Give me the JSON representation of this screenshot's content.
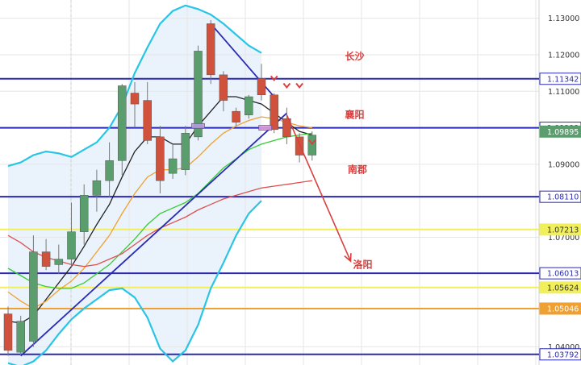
{
  "chart_data": {
    "type": "candlestick",
    "y_axis_ticks": [
      "1.13000",
      "1.12000",
      "1.11000",
      "1.10000",
      "1.09000",
      "1.07000",
      "1.04000"
    ],
    "ylim": [
      1.035,
      1.135
    ],
    "grid": true,
    "bollinger": {
      "upper": [
        1.0895,
        1.0905,
        1.0925,
        1.0935,
        1.093,
        1.092,
        1.094,
        1.096,
        1.1,
        1.106,
        1.115,
        1.122,
        1.1285,
        1.132,
        1.1335,
        1.1325,
        1.131,
        1.1285,
        1.1255,
        1.1225,
        1.1205
      ],
      "lower": [
        1.0355,
        1.0345,
        1.036,
        1.039,
        1.0435,
        1.0475,
        1.0505,
        1.053,
        1.0555,
        1.056,
        1.0535,
        1.048,
        1.0395,
        1.036,
        1.039,
        1.046,
        1.056,
        1.063,
        1.0705,
        1.0765,
        1.08
      ]
    },
    "candles": [
      {
        "o": 1.049,
        "h": 1.051,
        "l": 1.0375,
        "c": 1.039
      },
      {
        "o": 1.0385,
        "h": 1.0485,
        "l": 1.0375,
        "c": 1.047
      },
      {
        "o": 1.0415,
        "h": 1.0705,
        "l": 1.04,
        "c": 1.066
      },
      {
        "o": 1.066,
        "h": 1.0695,
        "l": 1.061,
        "c": 1.062
      },
      {
        "o": 1.0625,
        "h": 1.068,
        "l": 1.06,
        "c": 1.064
      },
      {
        "o": 1.064,
        "h": 1.0795,
        "l": 1.062,
        "c": 1.0715
      },
      {
        "o": 1.0715,
        "h": 1.0845,
        "l": 1.068,
        "c": 1.0815
      },
      {
        "o": 1.0815,
        "h": 1.0885,
        "l": 1.077,
        "c": 1.0855
      },
      {
        "o": 1.0855,
        "h": 1.096,
        "l": 1.081,
        "c": 1.091
      },
      {
        "o": 1.091,
        "h": 1.112,
        "l": 1.087,
        "c": 1.1115
      },
      {
        "o": 1.1095,
        "h": 1.1125,
        "l": 1.1,
        "c": 1.1065
      },
      {
        "o": 1.1075,
        "h": 1.1125,
        "l": 1.0955,
        "c": 1.0965
      },
      {
        "o": 1.0975,
        "h": 1.1005,
        "l": 1.082,
        "c": 1.0855
      },
      {
        "o": 1.0875,
        "h": 1.0955,
        "l": 1.086,
        "c": 1.0915
      },
      {
        "o": 1.0885,
        "h": 1.1005,
        "l": 1.087,
        "c": 1.0985
      },
      {
        "o": 1.0975,
        "h": 1.1225,
        "l": 1.0965,
        "c": 1.121
      },
      {
        "o": 1.1285,
        "h": 1.1295,
        "l": 1.112,
        "c": 1.1145
      },
      {
        "o": 1.1145,
        "h": 1.1155,
        "l": 1.1045,
        "c": 1.1075
      },
      {
        "o": 1.1045,
        "h": 1.1055,
        "l": 1.1005,
        "c": 1.1015
      },
      {
        "o": 1.1035,
        "h": 1.109,
        "l": 1.1025,
        "c": 1.1085
      },
      {
        "o": 1.1135,
        "h": 1.1175,
        "l": 1.1075,
        "c": 1.109
      },
      {
        "o": 1.109,
        "h": 1.1095,
        "l": 1.0985,
        "c": 1.0995
      },
      {
        "o": 1.1025,
        "h": 1.1055,
        "l": 1.0955,
        "c": 1.0975
      },
      {
        "o": 1.0975,
        "h": 1.0985,
        "l": 1.0905,
        "c": 1.0925
      },
      {
        "o": 1.0925,
        "h": 1.099,
        "l": 1.091,
        "c": 1.098
      }
    ],
    "moving_averages": [
      {
        "color": "#222222",
        "values": [
          1.047,
          1.0465,
          1.0485,
          1.053,
          1.0575,
          1.062,
          1.0675,
          1.0735,
          1.079,
          1.0865,
          1.0935,
          1.0975,
          1.0975,
          1.0955,
          1.0955,
          1.1005,
          1.1045,
          1.1085,
          1.1085,
          1.1075,
          1.1065,
          1.104,
          1.1015,
          1.099,
          1.098
        ]
      },
      {
        "color": "#f0a030",
        "values": [
          1.055,
          1.0525,
          1.0505,
          1.0525,
          1.0555,
          1.058,
          1.0615,
          1.066,
          1.0705,
          1.0765,
          1.082,
          1.0865,
          1.0885,
          1.0885,
          1.089,
          1.092,
          1.0955,
          1.0985,
          1.1005,
          1.102,
          1.103,
          1.1025,
          1.1015,
          1.1005,
          1.1
        ]
      },
      {
        "color": "#33cc33",
        "values": [
          1.0615,
          1.0595,
          1.0575,
          1.0565,
          1.056,
          1.056,
          1.0575,
          1.06,
          1.0625,
          1.066,
          1.0695,
          1.0735,
          1.0765,
          1.078,
          1.0795,
          1.082,
          1.0855,
          1.089,
          1.0915,
          1.094,
          1.0955,
          1.0965,
          1.0975,
          1.098,
          1.0985
        ]
      },
      {
        "color": "#e05050",
        "values": [
          1.0705,
          1.0685,
          1.066,
          1.0645,
          1.0635,
          1.0625,
          1.062,
          1.0625,
          1.064,
          1.0655,
          1.068,
          1.0705,
          1.0725,
          1.074,
          1.0755,
          1.0775,
          1.079,
          1.0805,
          1.0815,
          1.0825,
          1.0835,
          1.084,
          1.0845,
          1.085,
          1.0855
        ]
      }
    ],
    "horizontal_levels": [
      {
        "value": 1.11342,
        "label": "1.11342",
        "color": "#2a2ab4",
        "tag_bg": "#ffffff",
        "tag_fg": "#2a2ab4"
      },
      {
        "value": 1.09999,
        "label": "1.09999",
        "color": "#2a2ab4",
        "tag_bg": "#ffffff",
        "tag_fg": "#2a2ab4"
      },
      {
        "value": 1.0811,
        "label": "1.08110",
        "color": "#2a2ab4",
        "tag_bg": "#ffffff",
        "tag_fg": "#2a2ab4"
      },
      {
        "value": 1.07213,
        "label": "1.07213",
        "color": "#f2f05a",
        "tag_bg": "#f2f05a",
        "tag_fg": "#333333"
      },
      {
        "value": 1.06013,
        "label": "1.06013",
        "color": "#2a2ab4",
        "tag_bg": "#ffffff",
        "tag_fg": "#2a2ab4"
      },
      {
        "value": 1.05624,
        "label": "1.05624",
        "color": "#f2f05a",
        "tag_bg": "#f2f05a",
        "tag_fg": "#333333"
      },
      {
        "value": 1.05046,
        "label": "1.05046",
        "color": "#f0a030",
        "tag_bg": "#f0a030",
        "tag_fg": "#ffffff"
      },
      {
        "value": 1.03792,
        "label": "1.03792",
        "color": "#2a2ab4",
        "tag_bg": "#ffffff",
        "tag_fg": "#2a2ab4"
      }
    ],
    "current_price": {
      "value": 1.09895,
      "label": "1.09895",
      "color": "#5a9e6e"
    },
    "trendlines": [
      {
        "name": "rising-trendline",
        "from": [
          1,
          1.0375
        ],
        "to": [
          22,
          1.104
        ],
        "color": "#2a2ab4"
      },
      {
        "name": "falling-trendline",
        "from": [
          16,
          1.1285
        ],
        "to": [
          21,
          1.1085
        ],
        "color": "#2a2ab4"
      }
    ],
    "projection_arrow": {
      "from": [
        22,
        1.1035
      ],
      "to": [
        25,
        1.063
      ],
      "color": "#d84040"
    },
    "annotations": [
      {
        "text": "长沙",
        "price": 1.1195,
        "x_frac": 0.64
      },
      {
        "text": "襄阳",
        "price": 1.1035,
        "x_frac": 0.64
      },
      {
        "text": "南郡",
        "price": 1.0885,
        "x_frac": 0.645
      },
      {
        "text": "洛阳",
        "price": 1.0625,
        "x_frac": 0.655
      }
    ],
    "colors": {
      "bull": "#5a9e6e",
      "bear": "#d0523d",
      "bollinger_band": "#29c5e6",
      "band_fill": "#eaf3fb"
    }
  }
}
